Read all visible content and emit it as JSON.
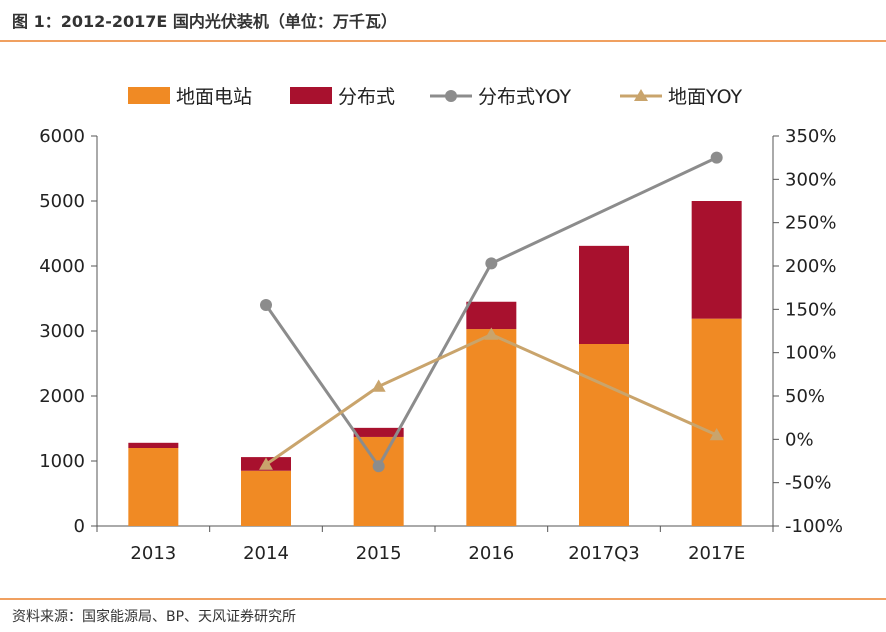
{
  "title": "图 1：2012-2017E 国内光伏装机（单位：万千瓦）",
  "source": "资料来源：国家能源局、BP、天风证券研究所",
  "chart_data": {
    "type": "bar",
    "categories": [
      "2013",
      "2014",
      "2015",
      "2016",
      "2017Q3",
      "2017E"
    ],
    "series": [
      {
        "name": "地面电站",
        "kind": "bar",
        "axis": "left",
        "color": "#f08a24",
        "values": [
          1200,
          850,
          1370,
          3030,
          2800,
          3190
        ]
      },
      {
        "name": "分布式",
        "kind": "bar",
        "axis": "left",
        "color": "#a8112e",
        "values": [
          80,
          210,
          140,
          420,
          1510,
          1810
        ]
      },
      {
        "name": "分布式YOY",
        "kind": "line",
        "axis": "right",
        "marker": "circle",
        "color": "#8c8c8c",
        "values": [
          null,
          155,
          -31,
          203,
          null,
          325
        ]
      },
      {
        "name": "地面YOY",
        "kind": "line",
        "axis": "right",
        "marker": "triangle",
        "color": "#c9a46c",
        "values": [
          null,
          -29,
          61,
          121,
          null,
          5
        ]
      }
    ],
    "y_left": {
      "ylim": [
        0,
        6000
      ],
      "ticks": [
        "0",
        "1000",
        "2000",
        "3000",
        "4000",
        "5000",
        "6000"
      ]
    },
    "y_right": {
      "ylim": [
        -100,
        350
      ],
      "ticks": [
        "-100%",
        "-50%",
        "0%",
        "50%",
        "100%",
        "150%",
        "200%",
        "250%",
        "300%",
        "350%"
      ]
    },
    "legend_position": "top"
  }
}
